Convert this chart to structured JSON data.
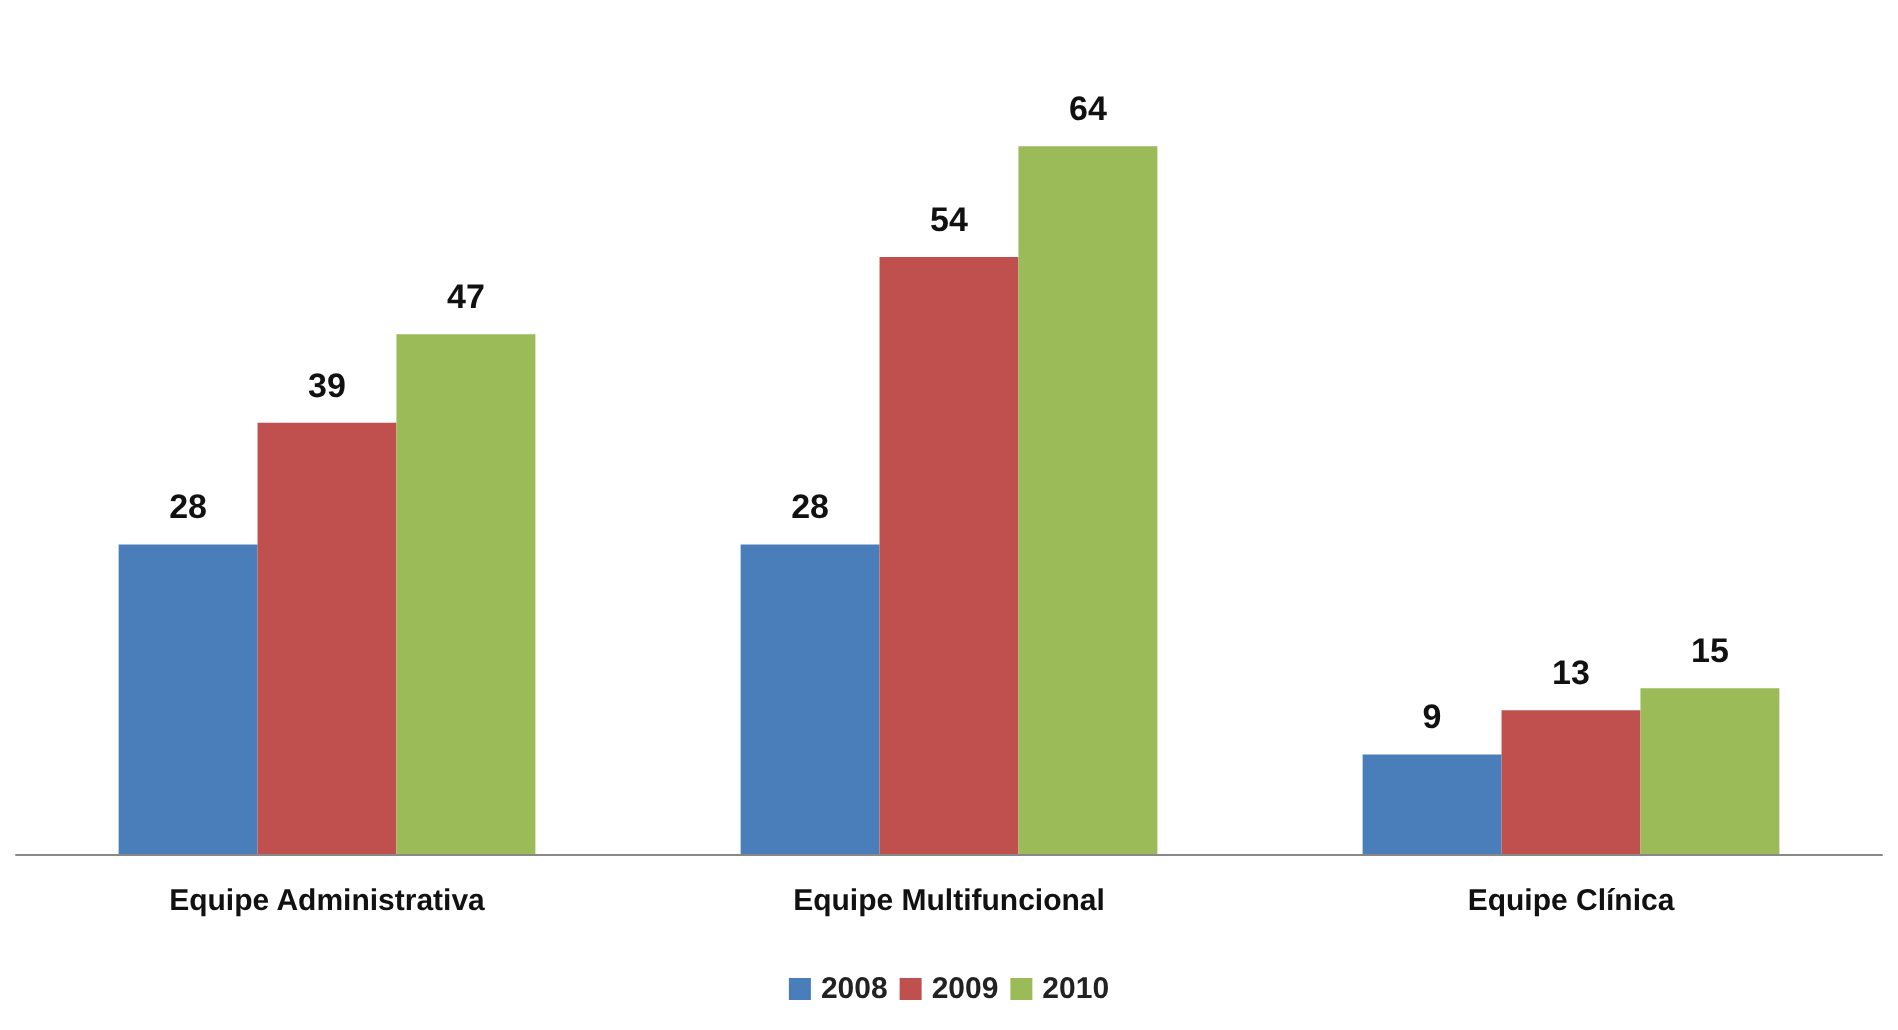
{
  "chart_data": {
    "type": "bar",
    "categories": [
      "Equipe Administrativa",
      "Equipe Multifuncional",
      "Equipe Clínica"
    ],
    "series": [
      {
        "name": "2008",
        "color": "#4a7ebb",
        "values": [
          28,
          28,
          9
        ]
      },
      {
        "name": "2009",
        "color": "#c0504d",
        "values": [
          39,
          54,
          13
        ]
      },
      {
        "name": "2010",
        "color": "#9bbb59",
        "values": [
          47,
          64,
          15
        ]
      }
    ],
    "data_labels": true,
    "legend": "bottom",
    "tick_labels": "x"
  }
}
